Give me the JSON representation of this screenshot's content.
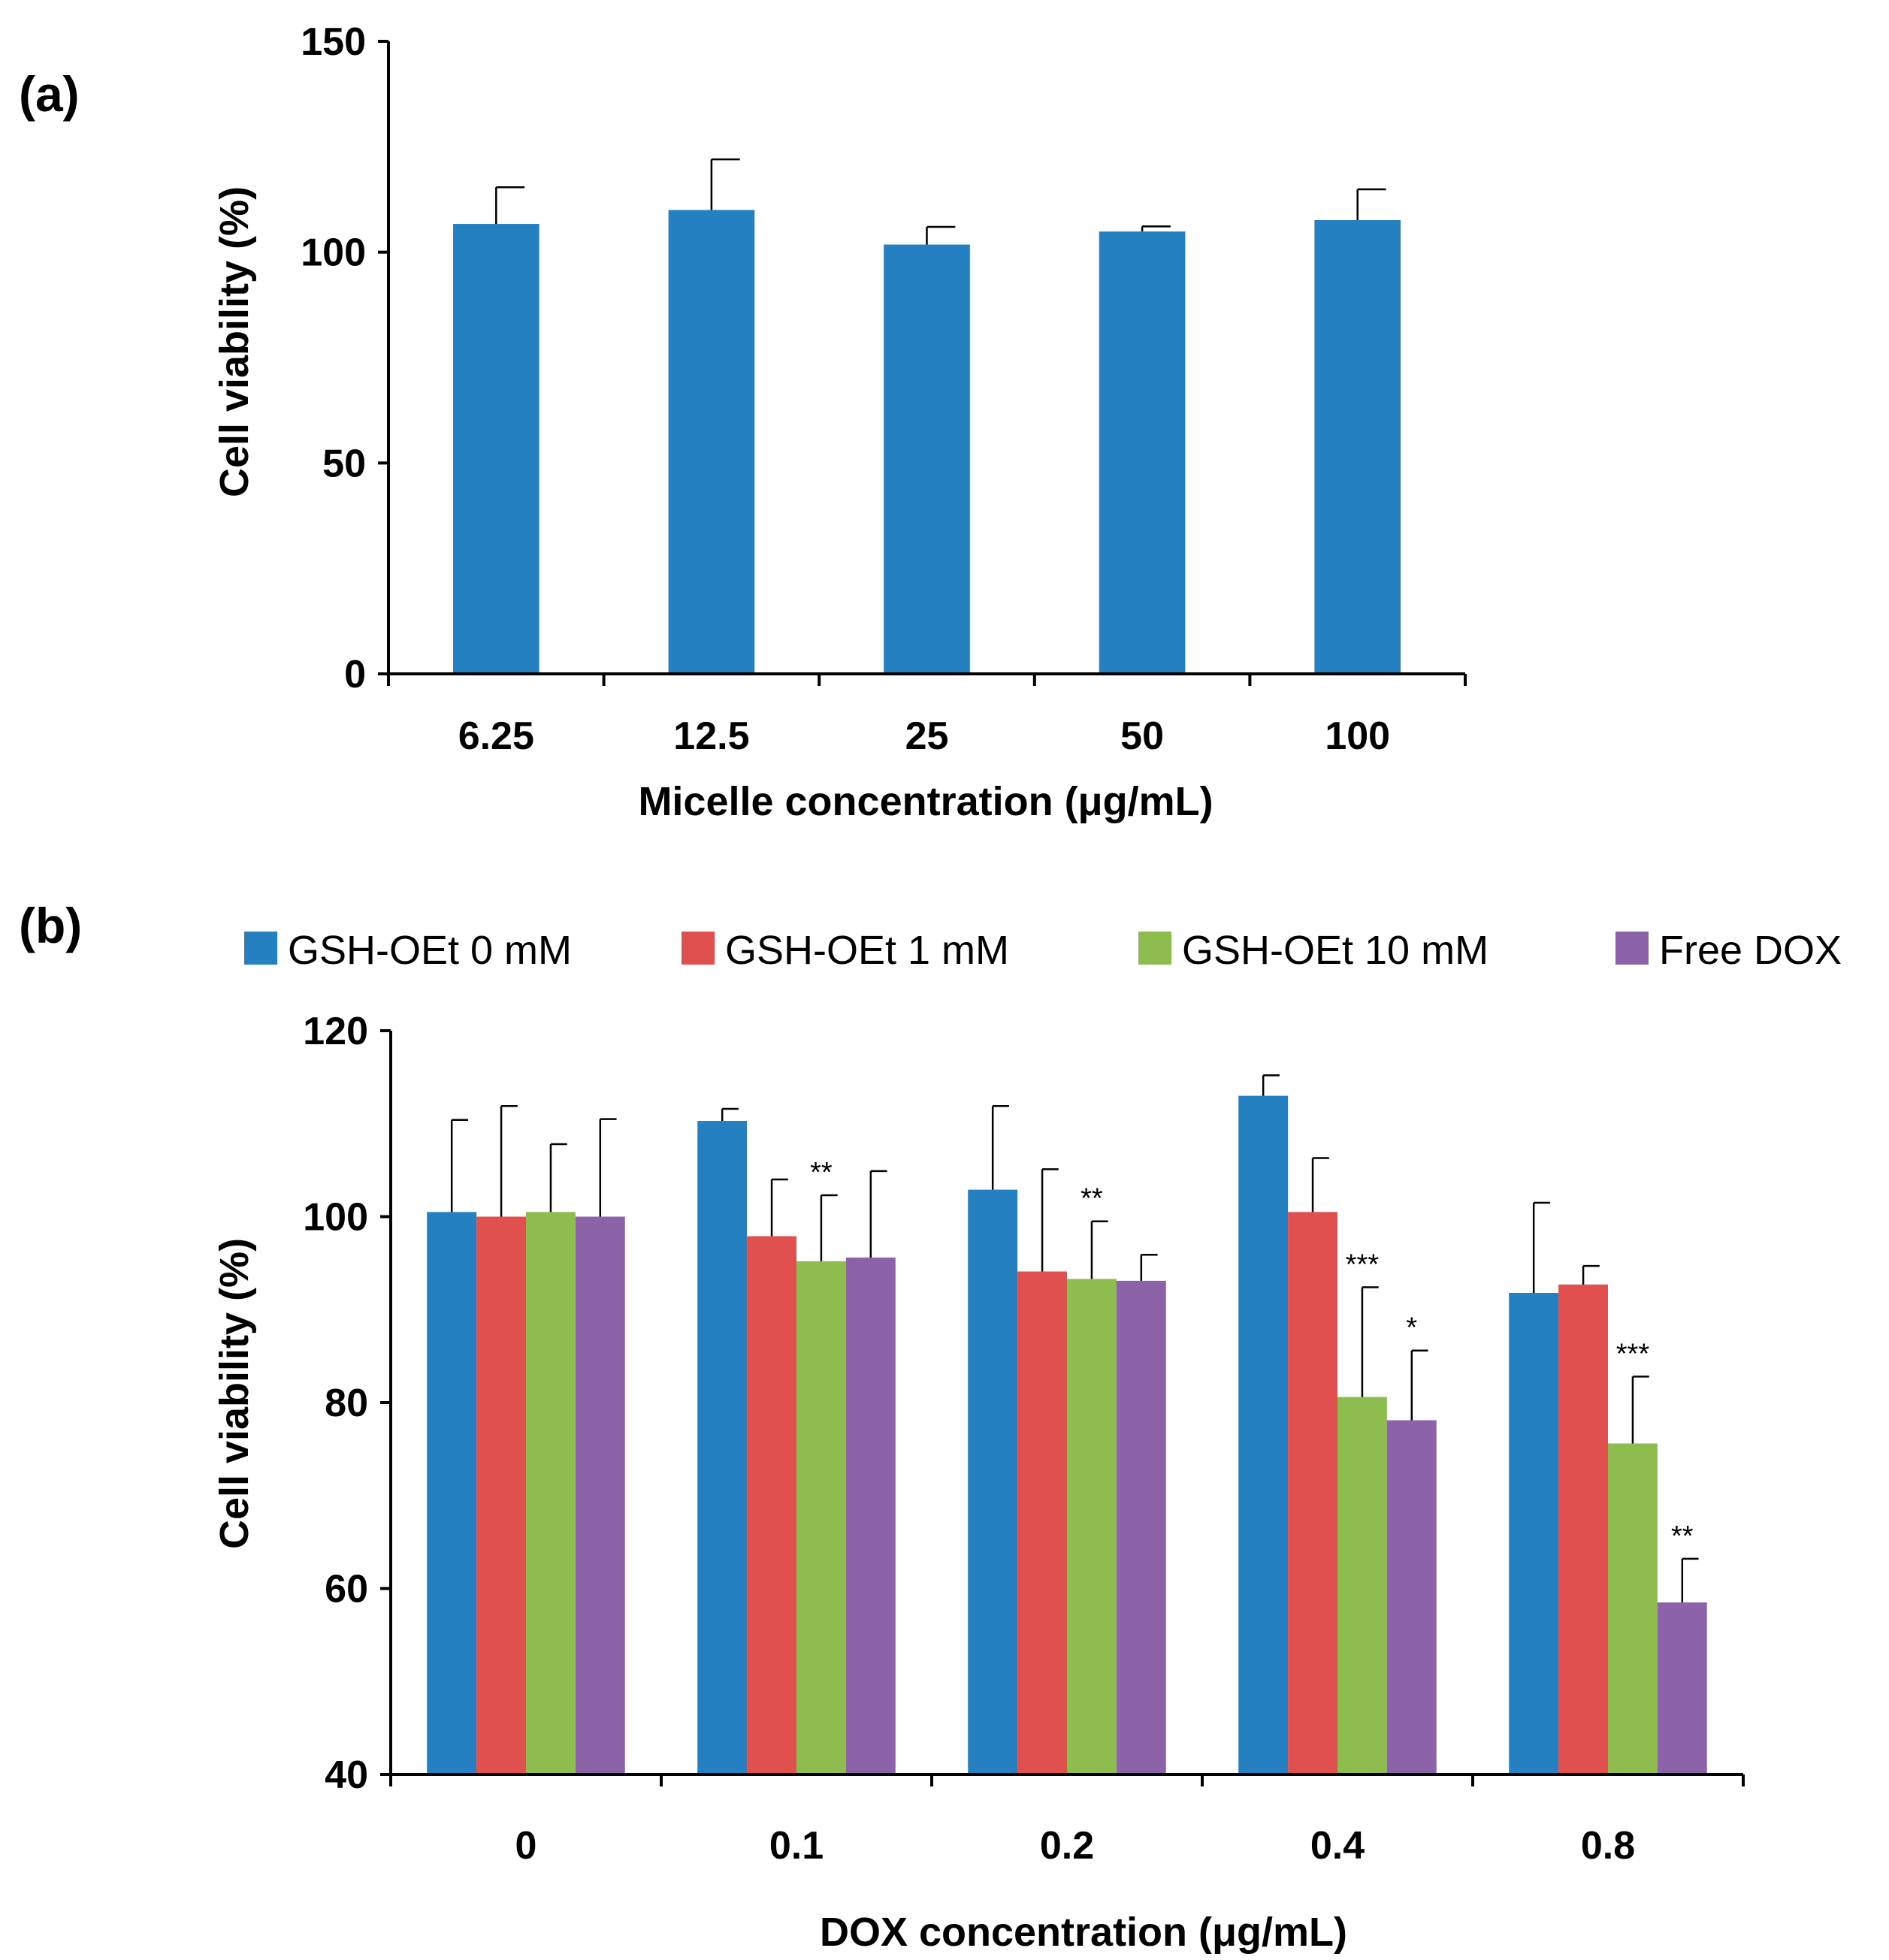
{
  "figure": {
    "background": "#ffffff"
  },
  "chart_data": [
    {
      "panel": "(a)",
      "type": "bar",
      "title": "",
      "xlabel": "Micelle concentration (μg/mL)",
      "ylabel": "Cell viability (%)",
      "ylim": [
        0,
        150
      ],
      "yticks": [
        0,
        50,
        100,
        150
      ],
      "categories": [
        "6.25",
        "12.5",
        "25",
        "50",
        "100"
      ],
      "series": [
        {
          "name": "Micelle",
          "color": "#2580c2",
          "values": [
            106.7,
            110.0,
            101.8,
            104.9,
            107.6
          ],
          "errors": [
            8.7,
            12.0,
            4.2,
            1.2,
            7.3
          ]
        }
      ],
      "legend": false,
      "grid": false
    },
    {
      "panel": "(b)",
      "type": "bar",
      "title": "",
      "xlabel": "DOX concentration (μg/mL)",
      "ylabel": "Cell viability (%)",
      "ylim": [
        40,
        120
      ],
      "yticks": [
        40,
        60,
        80,
        100,
        120
      ],
      "categories": [
        "0",
        "0.1",
        "0.2",
        "0.4",
        "0.8"
      ],
      "series": [
        {
          "name": "GSH-OEt 0 mM",
          "color": "#2580c2",
          "values": [
            100.5,
            110.3,
            102.9,
            113.0,
            91.8
          ],
          "errors": [
            9.9,
            1.3,
            9.0,
            2.2,
            9.7
          ]
        },
        {
          "name": "GSH-OEt 1 mM",
          "color": "#e0504e",
          "values": [
            100.0,
            97.9,
            94.1,
            100.5,
            92.7
          ],
          "errors": [
            11.9,
            6.1,
            11.0,
            5.8,
            2.0
          ]
        },
        {
          "name": "GSH-OEt 10 mM",
          "color": "#8ebc4e",
          "values": [
            100.5,
            95.2,
            93.3,
            80.6,
            75.6
          ],
          "errors": [
            7.3,
            7.1,
            6.2,
            11.8,
            7.2
          ]
        },
        {
          "name": "Free DOX",
          "color": "#8c63a8",
          "values": [
            100.0,
            95.6,
            93.1,
            78.1,
            58.5
          ],
          "errors": [
            10.5,
            9.3,
            2.8,
            7.5,
            4.7
          ]
        }
      ],
      "significance": [
        {
          "category": "0.1",
          "series": "GSH-OEt 10 mM",
          "label": "**"
        },
        {
          "category": "0.2",
          "series": "GSH-OEt 10 mM",
          "label": "**"
        },
        {
          "category": "0.4",
          "series": "GSH-OEt 10 mM",
          "label": "***"
        },
        {
          "category": "0.4",
          "series": "Free DOX",
          "label": "*"
        },
        {
          "category": "0.8",
          "series": "GSH-OEt 10 mM",
          "label": "***"
        },
        {
          "category": "0.8",
          "series": "Free DOX",
          "label": "**"
        }
      ],
      "legend": true,
      "legend_position": "top",
      "grid": false
    }
  ]
}
